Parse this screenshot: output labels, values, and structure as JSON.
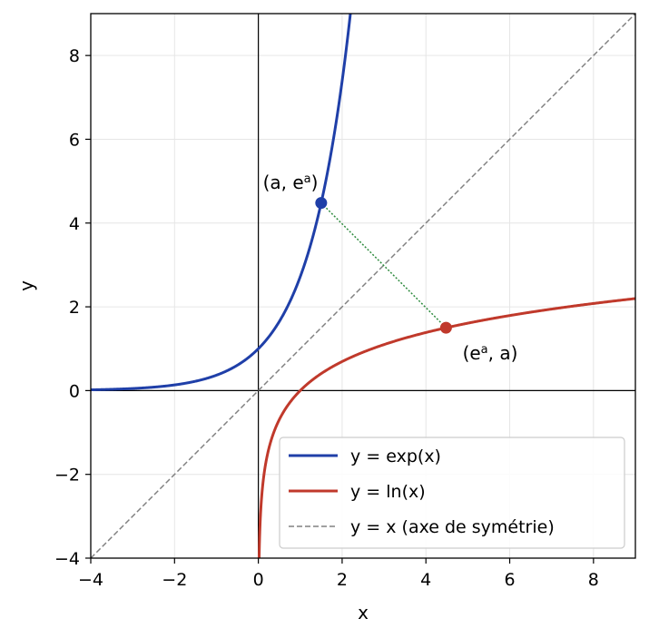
{
  "chart_data": {
    "type": "line",
    "xlabel": "x",
    "ylabel": "y",
    "xlim": [
      -4,
      9
    ],
    "ylim": [
      -4,
      9
    ],
    "xticks": [
      -4,
      -2,
      0,
      2,
      4,
      6,
      8
    ],
    "yticks": [
      -4,
      -2,
      0,
      2,
      4,
      6,
      8
    ],
    "xtick_labels": [
      "−4",
      "−2",
      "0",
      "2",
      "4",
      "6",
      "8"
    ],
    "ytick_labels": [
      "−4",
      "−2",
      "0",
      "2",
      "4",
      "6",
      "8"
    ],
    "grid": true,
    "legend_position": "lower-right",
    "series": [
      {
        "name": "y = exp(x)",
        "function": "exp",
        "color": "#1f3fa8",
        "style": "solid"
      },
      {
        "name": "y = ln(x)",
        "function": "ln",
        "color": "#c0392b",
        "style": "solid"
      },
      {
        "name": "y = x (axe de symétrie)",
        "function": "identity",
        "color": "#808080",
        "style": "dashed"
      }
    ],
    "points": [
      {
        "x": 1.5,
        "y": 4.48,
        "color": "#1f3fa8",
        "label_base": "(a, e",
        "label_sup": "a",
        "label_end": ")"
      },
      {
        "x": 4.48,
        "y": 1.5,
        "color": "#c0392b",
        "label_base": "(e",
        "label_sup": "a",
        "label_end": ", a)"
      }
    ],
    "connector": {
      "from": [
        1.5,
        4.48
      ],
      "to": [
        4.48,
        1.5
      ],
      "color": "#2e8b3e",
      "style": "dotted"
    }
  }
}
